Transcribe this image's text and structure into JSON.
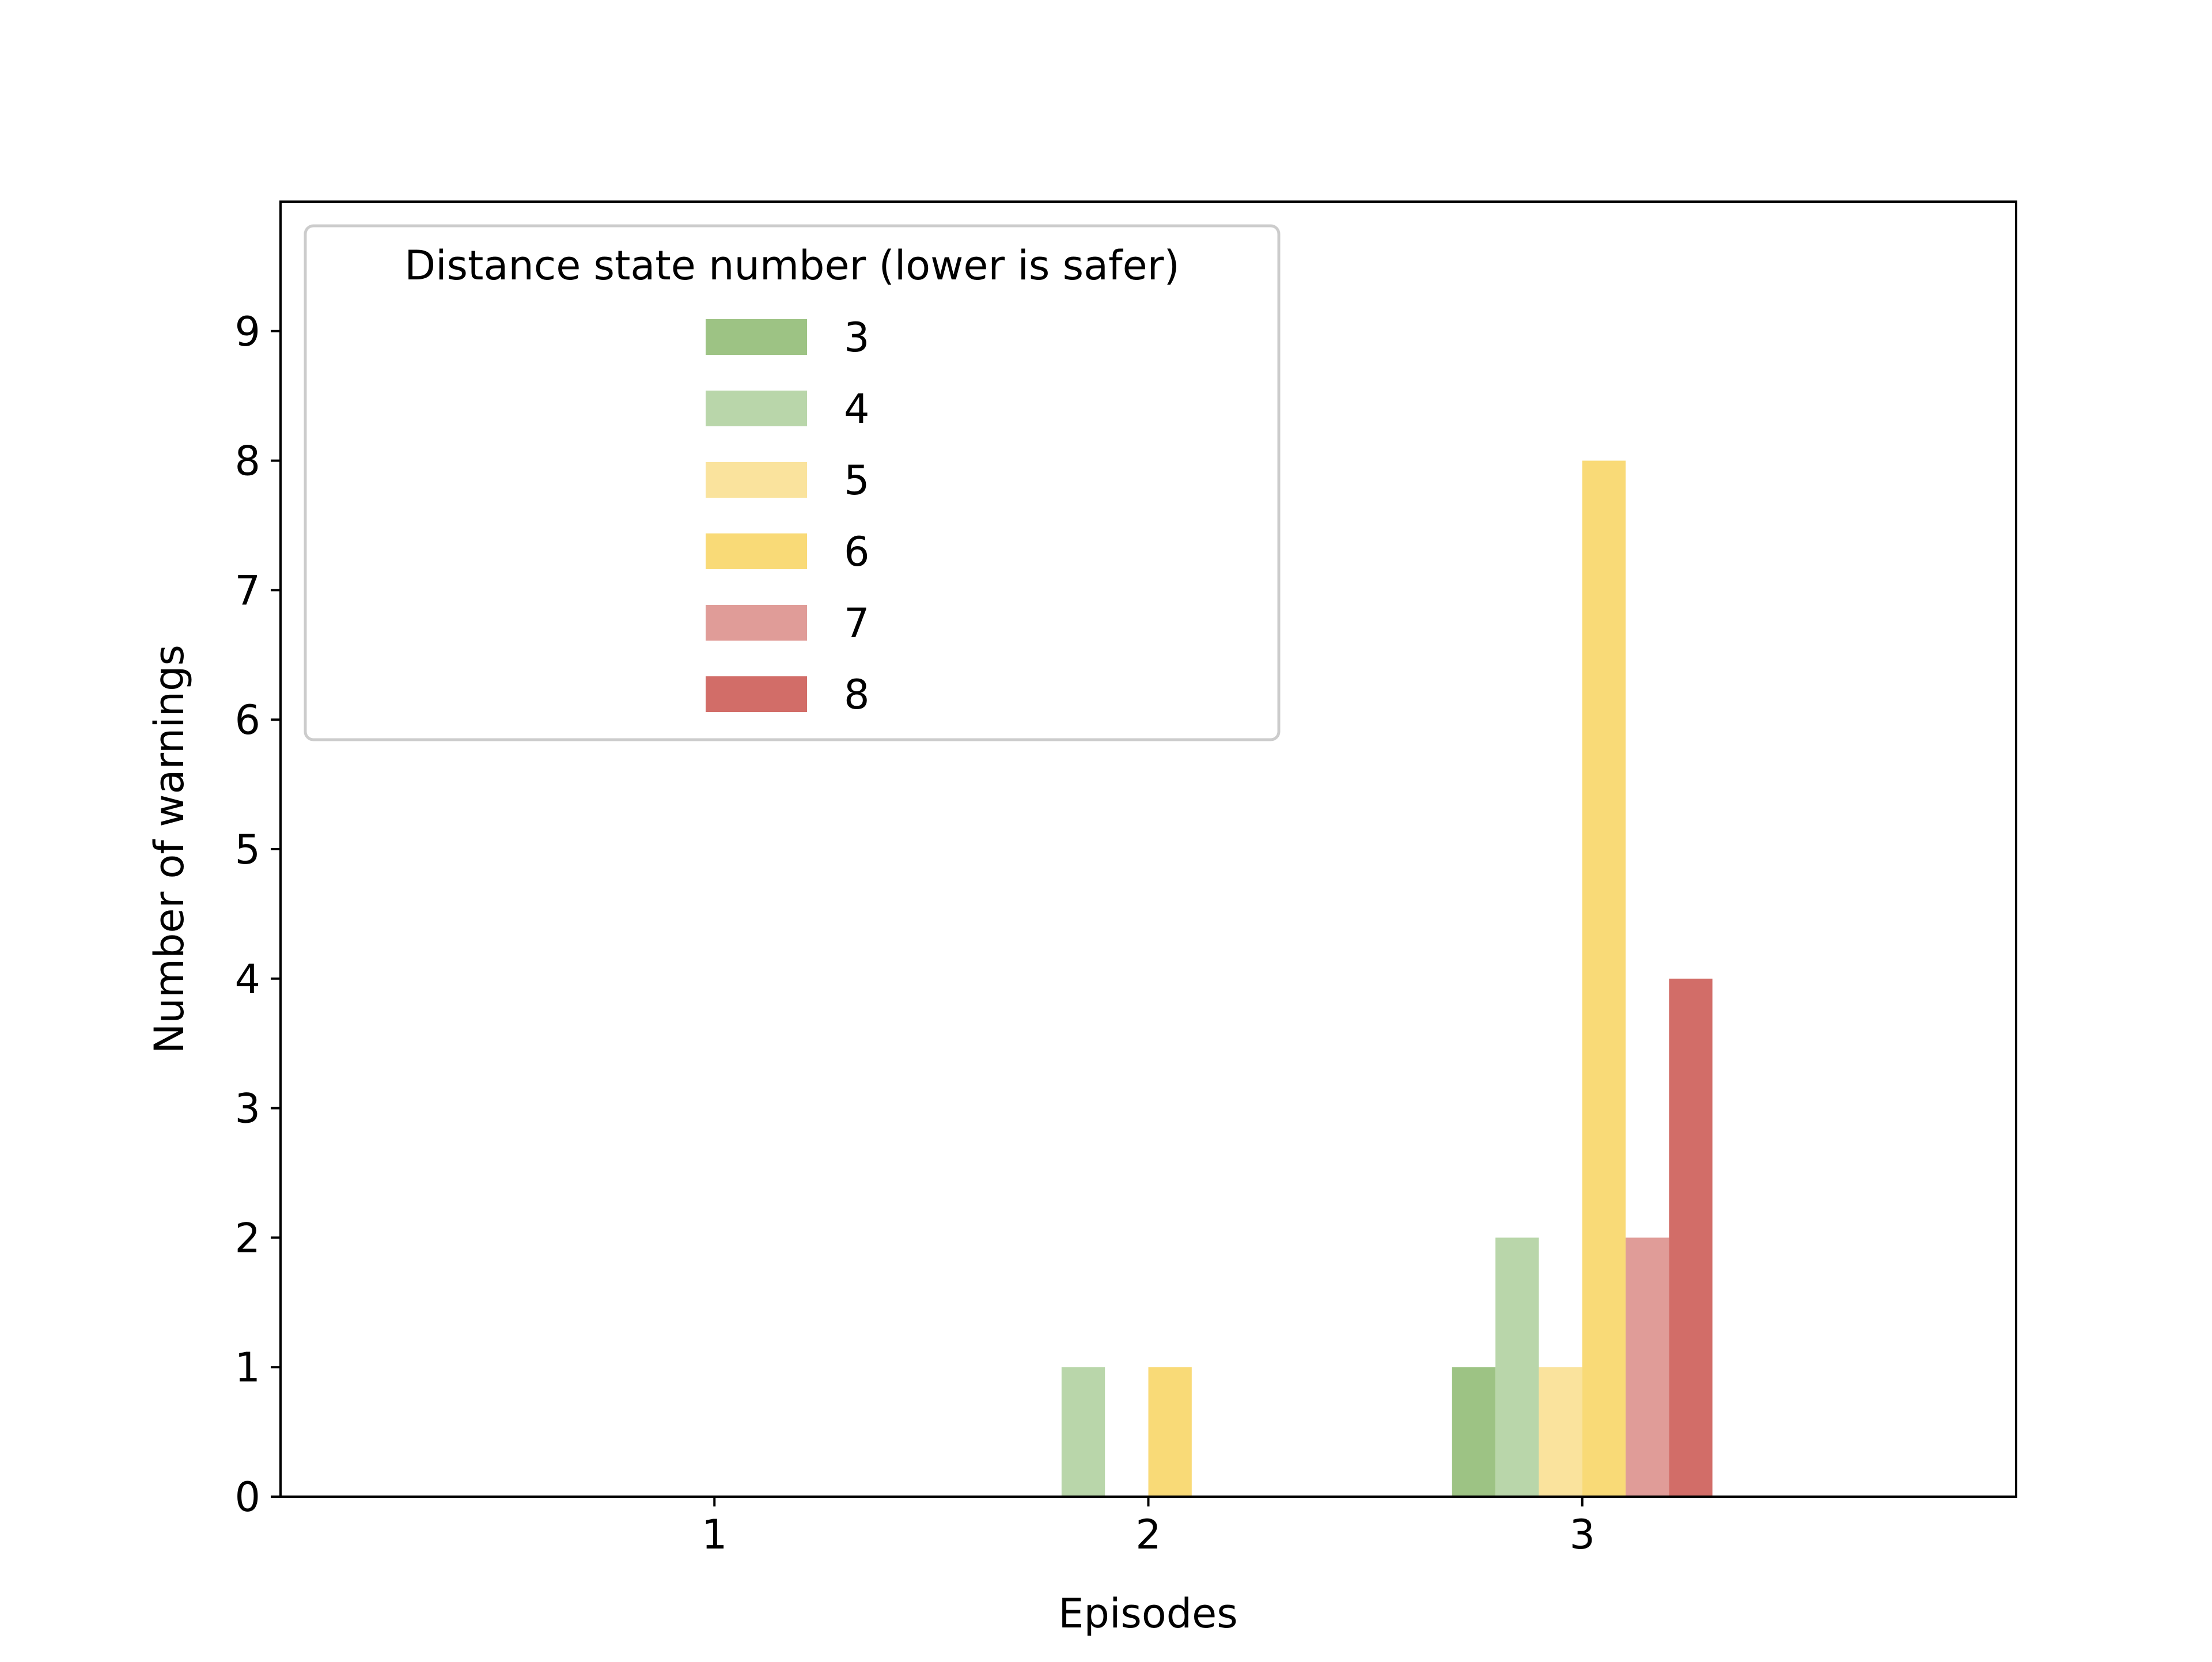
{
  "chart_data": {
    "type": "bar",
    "title": "",
    "xlabel": "Episodes",
    "ylabel": "Number of warnings",
    "categories": [
      "1",
      "2",
      "3"
    ],
    "xlim": [
      0,
      4
    ],
    "ylim": [
      0,
      10
    ],
    "yticks": [
      0,
      1,
      2,
      3,
      4,
      5,
      6,
      7,
      8,
      9
    ],
    "grid": false,
    "legend": {
      "title": "Distance state number (lower is safer)",
      "placement": "top-left"
    },
    "series": [
      {
        "name": "3",
        "color": "#9dc384",
        "values": [
          0,
          0,
          1
        ]
      },
      {
        "name": "4",
        "color": "#b9d6aa",
        "values": [
          0,
          1,
          2
        ]
      },
      {
        "name": "5",
        "color": "#fae39d",
        "values": [
          0,
          0,
          1
        ]
      },
      {
        "name": "6",
        "color": "#f9da77",
        "values": [
          0,
          1,
          8
        ]
      },
      {
        "name": "7",
        "color": "#e09c98",
        "values": [
          0,
          0,
          2
        ]
      },
      {
        "name": "8",
        "color": "#d26d68",
        "values": [
          0,
          0,
          4
        ]
      }
    ]
  }
}
